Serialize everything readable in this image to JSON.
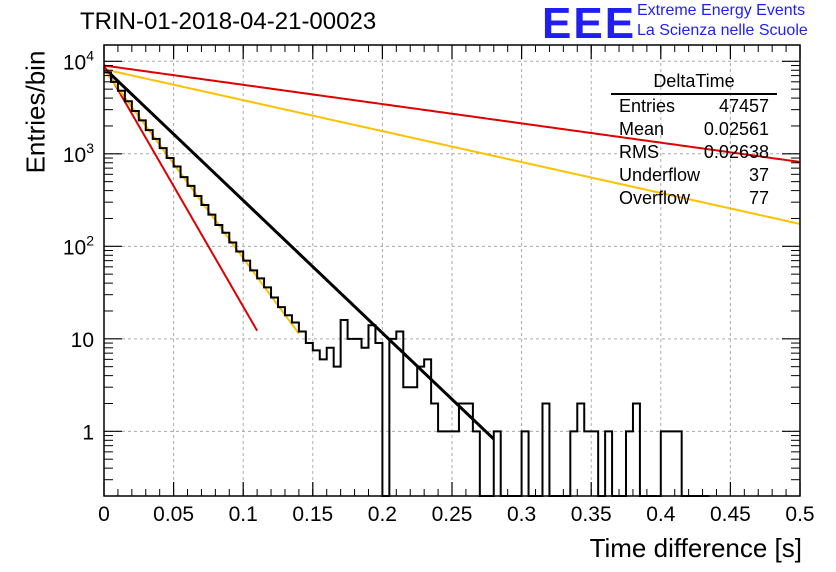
{
  "title": "TRIN-01-2018-04-21-00023",
  "logo": {
    "mark": "EEE",
    "line1": "Extreme Energy Events",
    "line2": "La Scienza nelle Scuole",
    "color": "#1f1ff0"
  },
  "stats": {
    "name": "DeltaTime",
    "rows": [
      {
        "label": "Entries",
        "value": "47457"
      },
      {
        "label": "Mean",
        "value": "0.02561"
      },
      {
        "label": "RMS",
        "value": "0.02638"
      },
      {
        "label": "Underflow",
        "value": "37"
      },
      {
        "label": "Overflow",
        "value": "77"
      }
    ]
  },
  "chart_data": {
    "type": "histogram",
    "xlabel": "Time difference [s]",
    "ylabel": "Entries/bin",
    "xlim": [
      0,
      0.5
    ],
    "ylim": [
      0.2,
      15000
    ],
    "yscale": "log",
    "grid": true,
    "x_ticks": [
      "0",
      "0.05",
      "0.1",
      "0.15",
      "0.2",
      "0.25",
      "0.3",
      "0.35",
      "0.4",
      "0.45",
      "0.5"
    ],
    "x_tick_values": [
      0,
      0.05,
      0.1,
      0.15,
      0.2,
      0.25,
      0.3,
      0.35,
      0.4,
      0.45,
      0.5
    ],
    "y_ticks": [
      {
        "value": 1,
        "base": "1",
        "exp": ""
      },
      {
        "value": 10,
        "base": "10",
        "exp": ""
      },
      {
        "value": 100,
        "base": "10",
        "exp": "2"
      },
      {
        "value": 1000,
        "base": "10",
        "exp": "3"
      },
      {
        "value": 10000,
        "base": "10",
        "exp": "4"
      }
    ],
    "bin_width": 0.005,
    "histogram": [
      7600,
      6000,
      4800,
      3700,
      2900,
      2300,
      1800,
      1450,
      1150,
      900,
      730,
      560,
      450,
      350,
      280,
      220,
      170,
      140,
      110,
      88,
      70,
      55,
      45,
      36,
      28,
      22,
      18,
      15,
      12,
      9,
      7.5,
      6,
      8,
      5,
      16,
      10,
      10,
      8,
      14,
      9,
      0,
      10,
      12,
      3,
      3,
      5,
      6,
      2,
      1,
      1,
      1,
      2,
      2,
      1,
      0,
      0,
      1,
      0,
      0,
      0,
      1,
      0,
      0,
      2,
      0,
      0,
      0,
      1,
      2,
      1,
      1,
      0,
      1,
      0,
      0,
      1,
      2,
      0,
      0,
      0,
      1,
      1,
      1,
      0,
      0,
      0,
      0
    ],
    "fits": [
      {
        "amplitude": 8500,
        "slope": 33.0,
        "xmax": 0.28,
        "color": "#000000"
      },
      {
        "amplitude": 9000,
        "slope": 4.8,
        "xmax": 0.5,
        "color": "#dd0000"
      },
      {
        "amplitude": 8200,
        "slope": 7.7,
        "xmax": 0.5,
        "color": "#ffc000"
      },
      {
        "amplitude": 9000,
        "slope": 60.0,
        "xmax": 0.11,
        "color": "#dd0000"
      },
      {
        "amplitude": 8200,
        "slope": 47.0,
        "xmax": 0.14,
        "color": "#ffc000"
      }
    ]
  }
}
